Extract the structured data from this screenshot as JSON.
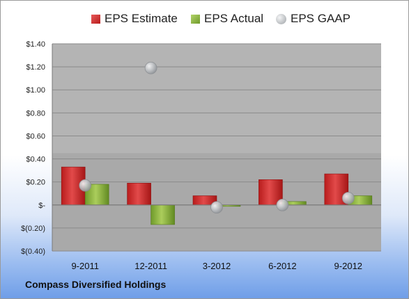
{
  "company_name": "Compass Diversified Holdings",
  "colors": {
    "estimate": "#cc2b2b",
    "actual": "#8db33f",
    "gaap": "#b9bcc0",
    "plot_background": "#a9a9a9"
  },
  "chart_data": {
    "type": "bar",
    "categories": [
      "9-2011",
      "12-2011",
      "3-2012",
      "6-2012",
      "9-2012"
    ],
    "series": [
      {
        "name": "EPS Estimate",
        "kind": "bar",
        "values": [
          0.33,
          0.19,
          0.08,
          0.22,
          0.27
        ]
      },
      {
        "name": "EPS Actual",
        "kind": "bar",
        "values": [
          0.18,
          -0.17,
          -0.01,
          0.03,
          0.08
        ]
      },
      {
        "name": "EPS GAAP",
        "kind": "marker",
        "values": [
          0.17,
          1.19,
          -0.02,
          0.0,
          0.06
        ]
      }
    ],
    "ylim": [
      -0.4,
      1.4
    ],
    "yticks": [
      1.4,
      1.2,
      1.0,
      0.8,
      0.6,
      0.4,
      0.2,
      0,
      -0.2,
      -0.4
    ],
    "ytick_labels": [
      "$1.40",
      "$1.20",
      "$1.00",
      "$0.80",
      "$0.60",
      "$0.40",
      "$0.20",
      "$-",
      "$(0.20)",
      "$(0.40)"
    ],
    "legend_position": "top",
    "grid": true
  }
}
